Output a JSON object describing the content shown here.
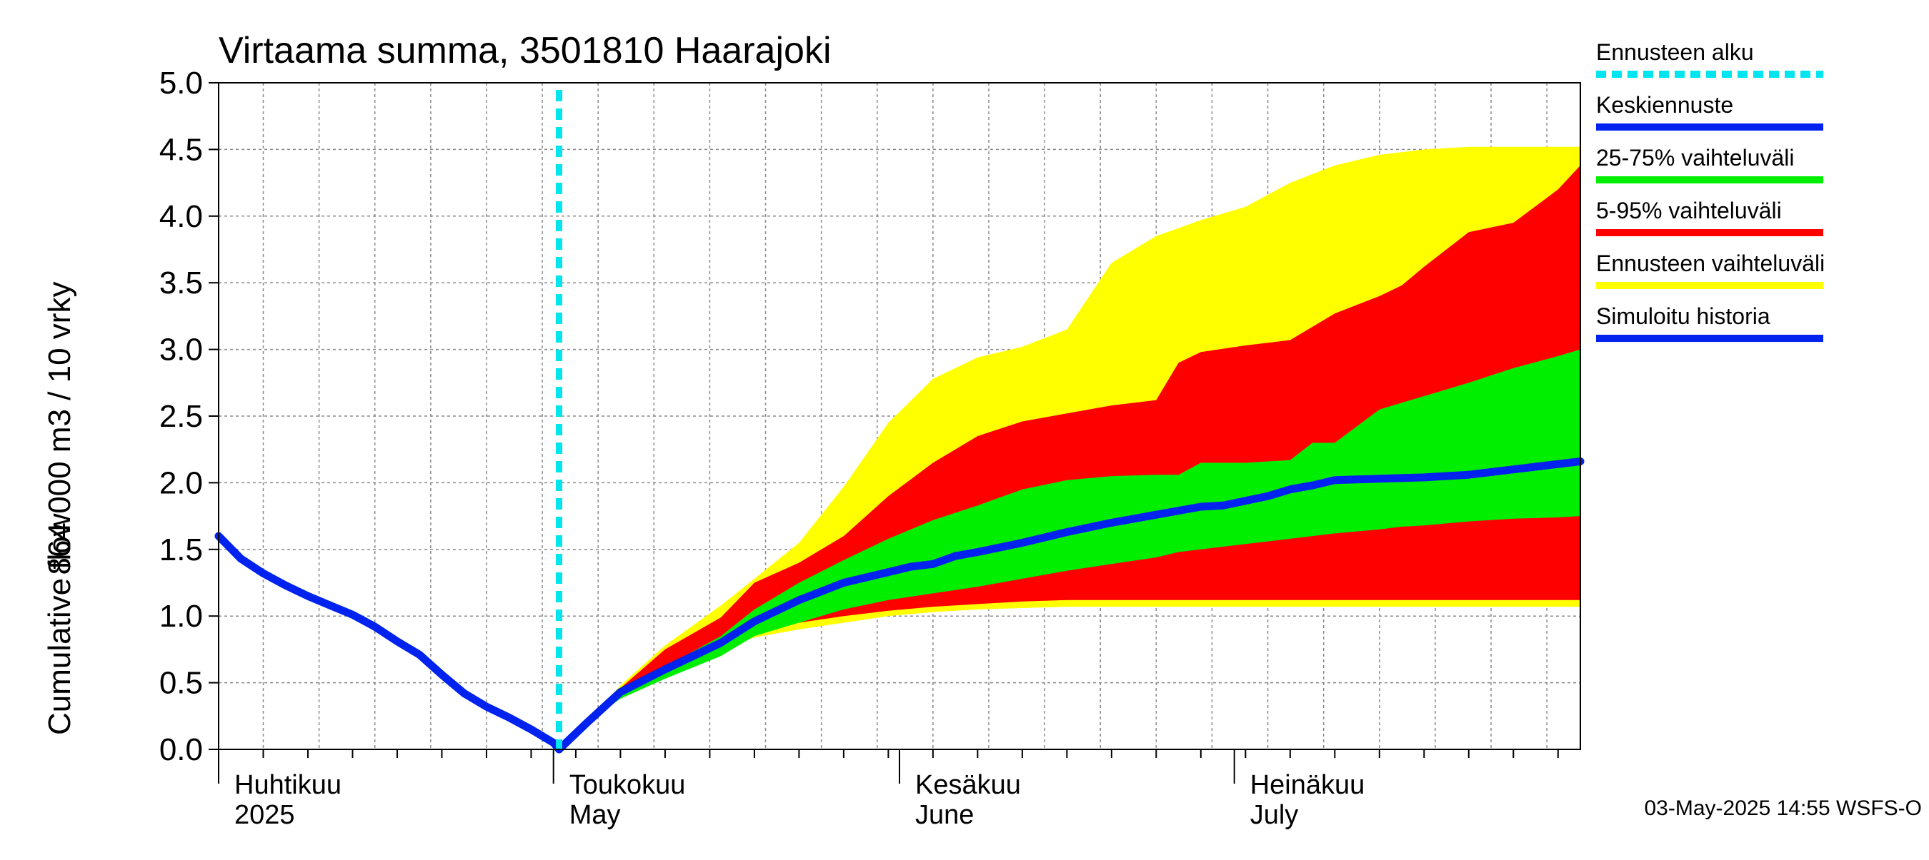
{
  "chart_data": {
    "type": "area",
    "title": "Virtaama summa, 3501810 Haarajoki",
    "ylabel_lines": [
      "Cumulative flow",
      "864 000 m3 / 10 vrky"
    ],
    "ylim": [
      0,
      5
    ],
    "yticks": [
      "0.0",
      "0.5",
      "1.0",
      "1.5",
      "2.0",
      "2.5",
      "3.0",
      "3.5",
      "4.0",
      "4.5",
      "5.0"
    ],
    "grid": true,
    "x_range_days": [
      0,
      122
    ],
    "months": [
      {
        "fi": "Huhtikuu",
        "en": "2025",
        "day": 0
      },
      {
        "fi": "Toukokuu",
        "en": "May",
        "day": 30
      },
      {
        "fi": "Kesäkuu",
        "en": "June",
        "day": 61
      },
      {
        "fi": "Heinäkuu",
        "en": "July",
        "day": 91
      }
    ],
    "forecast_start_day": 30.5,
    "history": {
      "x": [
        0,
        2,
        4,
        6,
        8,
        10,
        12,
        14,
        16,
        18,
        20,
        22,
        24,
        26,
        28,
        30,
        30.5
      ],
      "y": [
        1.6,
        1.43,
        1.32,
        1.23,
        1.15,
        1.08,
        1.01,
        0.92,
        0.81,
        0.71,
        0.56,
        0.42,
        0.32,
        0.24,
        0.15,
        0.05,
        0.0
      ]
    },
    "series": [
      {
        "name": "Ennusteen vaihteluväli",
        "x": [
          30.5,
          33,
          36,
          40,
          45,
          48,
          52,
          56,
          60,
          64,
          68,
          72,
          76,
          78,
          80,
          84,
          88,
          92,
          96,
          100,
          104,
          108,
          112,
          116,
          120,
          122
        ],
        "upper": [
          0.0,
          0.2,
          0.48,
          0.78,
          1.08,
          1.28,
          1.55,
          1.97,
          2.45,
          2.78,
          2.94,
          3.02,
          3.15,
          3.4,
          3.65,
          3.85,
          3.97,
          4.07,
          4.25,
          4.38,
          4.46,
          4.5,
          4.52,
          4.52,
          4.52,
          4.52
        ],
        "lower": [
          0.0,
          0.19,
          0.38,
          0.58,
          0.75,
          0.84,
          0.9,
          0.95,
          1.0,
          1.03,
          1.05,
          1.06,
          1.07,
          1.07,
          1.07,
          1.07,
          1.07,
          1.07,
          1.07,
          1.07,
          1.07,
          1.07,
          1.07,
          1.07,
          1.07,
          1.07
        ]
      },
      {
        "name": "5-95% vaihteluväli",
        "x": [
          30.5,
          33,
          36,
          40,
          45,
          48,
          52,
          56,
          60,
          64,
          68,
          72,
          76,
          80,
          84,
          86,
          88,
          92,
          96,
          100,
          104,
          106,
          108,
          112,
          116,
          120,
          122
        ],
        "upper": [
          0.0,
          0.2,
          0.46,
          0.75,
          0.99,
          1.25,
          1.4,
          1.6,
          1.9,
          2.15,
          2.35,
          2.46,
          2.52,
          2.58,
          2.62,
          2.9,
          2.98,
          3.03,
          3.07,
          3.27,
          3.4,
          3.48,
          3.62,
          3.88,
          3.95,
          4.2,
          4.38
        ],
        "lower": [
          0.0,
          0.19,
          0.39,
          0.58,
          0.77,
          0.88,
          0.95,
          1.0,
          1.04,
          1.07,
          1.09,
          1.11,
          1.12,
          1.12,
          1.12,
          1.12,
          1.12,
          1.12,
          1.12,
          1.12,
          1.12,
          1.12,
          1.12,
          1.12,
          1.12,
          1.12,
          1.12
        ]
      },
      {
        "name": "25-75% vaihteluväli",
        "x": [
          30.5,
          33,
          36,
          40,
          45,
          48,
          52,
          56,
          60,
          64,
          68,
          72,
          76,
          80,
          84,
          86,
          88,
          92,
          96,
          98,
          100,
          104,
          106,
          108,
          112,
          116,
          120,
          122
        ],
        "upper": [
          0.0,
          0.2,
          0.42,
          0.62,
          0.85,
          1.05,
          1.25,
          1.42,
          1.58,
          1.72,
          1.83,
          1.95,
          2.02,
          2.05,
          2.06,
          2.06,
          2.15,
          2.15,
          2.17,
          2.3,
          2.3,
          2.55,
          2.6,
          2.65,
          2.75,
          2.86,
          2.95,
          3.0
        ],
        "lower": [
          0.0,
          0.2,
          0.38,
          0.53,
          0.7,
          0.85,
          0.95,
          1.05,
          1.12,
          1.17,
          1.22,
          1.28,
          1.34,
          1.39,
          1.44,
          1.48,
          1.5,
          1.54,
          1.58,
          1.6,
          1.62,
          1.65,
          1.67,
          1.68,
          1.71,
          1.73,
          1.74,
          1.75
        ]
      },
      {
        "name": "Keskiennuste",
        "x": [
          30.5,
          33,
          36,
          40,
          45,
          48,
          52,
          56,
          60,
          62,
          64,
          66,
          68,
          72,
          76,
          80,
          84,
          88,
          90,
          94,
          96,
          98,
          100,
          104,
          108,
          112,
          116,
          120,
          122
        ],
        "values": [
          0.0,
          0.2,
          0.43,
          0.6,
          0.8,
          0.96,
          1.12,
          1.25,
          1.33,
          1.37,
          1.39,
          1.45,
          1.48,
          1.55,
          1.63,
          1.7,
          1.76,
          1.82,
          1.83,
          1.9,
          1.95,
          1.98,
          2.02,
          2.03,
          2.04,
          2.06,
          2.1,
          2.14,
          2.16
        ]
      }
    ],
    "legend": [
      {
        "label": "Ennusteen alku",
        "color": "#00e5ee",
        "style": "dashed"
      },
      {
        "label": "Keskiennuste",
        "color": "#0022ee",
        "style": "solid"
      },
      {
        "label": "25-75% vaihteluväli",
        "color": "#00ee00",
        "style": "solid"
      },
      {
        "label": "5-95% vaihteluväli",
        "color": "#ff0000",
        "style": "solid"
      },
      {
        "label": "Ennusteen vaihteluväli",
        "color": "#ffff00",
        "style": "solid"
      },
      {
        "label": "Simuloitu historia",
        "color": "#0022ee",
        "style": "solid"
      }
    ],
    "colors": {
      "yellow": "#ffff00",
      "red": "#ff0000",
      "green": "#00ee00",
      "blue": "#0022ee",
      "cyan": "#00e5ee",
      "grid": "#888888"
    },
    "footer": "03-May-2025 14:55 WSFS-O"
  }
}
